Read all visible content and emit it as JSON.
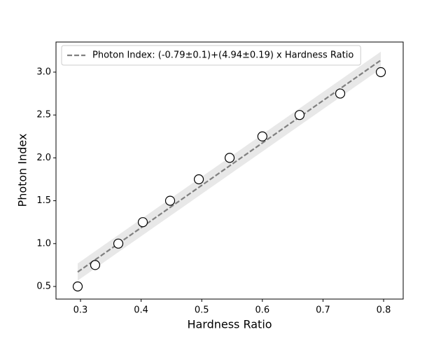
{
  "chart_data": {
    "type": "scatter",
    "xlabel": "Hardness Ratio",
    "ylabel": "Photon Index",
    "xlim": [
      0.2596,
      0.8323
    ],
    "ylim": [
      0.353,
      3.351
    ],
    "xticks": [
      0.3,
      0.4,
      0.5,
      0.6,
      0.7,
      0.8
    ],
    "yticks": [
      0.5,
      {
        "value": 1.0,
        "label": "1.0"
      },
      1.5,
      {
        "value": 2.0,
        "label": "2.0"
      },
      2.5,
      {
        "value": 3.0,
        "label": "3.0"
      }
    ],
    "legend": "upper left",
    "series": [
      {
        "name": "Photon Index: (-0.79±0.1)+(4.94±0.19) x Hardness Ratio",
        "type": "line",
        "color": "#808080",
        "dashed": true,
        "x": [
          0.2954,
          0.7954
        ],
        "values": [
          0.669,
          3.139
        ],
        "band_lower": [
          0.569,
          3.039
        ],
        "band_upper": [
          0.769,
          3.239
        ],
        "band_color": "#d9d9d9"
      },
      {
        "type": "scatter",
        "color": "#000000",
        "fill": "#ffffff",
        "x": [
          0.2954,
          0.3242,
          0.3624,
          0.4028,
          0.4478,
          0.4952,
          0.546,
          0.6,
          0.6614,
          0.7284,
          0.7954
        ],
        "values": [
          0.5,
          0.75,
          1.0,
          1.25,
          1.5,
          1.75,
          2.0,
          2.25,
          2.5,
          2.75,
          3.0
        ]
      }
    ]
  }
}
